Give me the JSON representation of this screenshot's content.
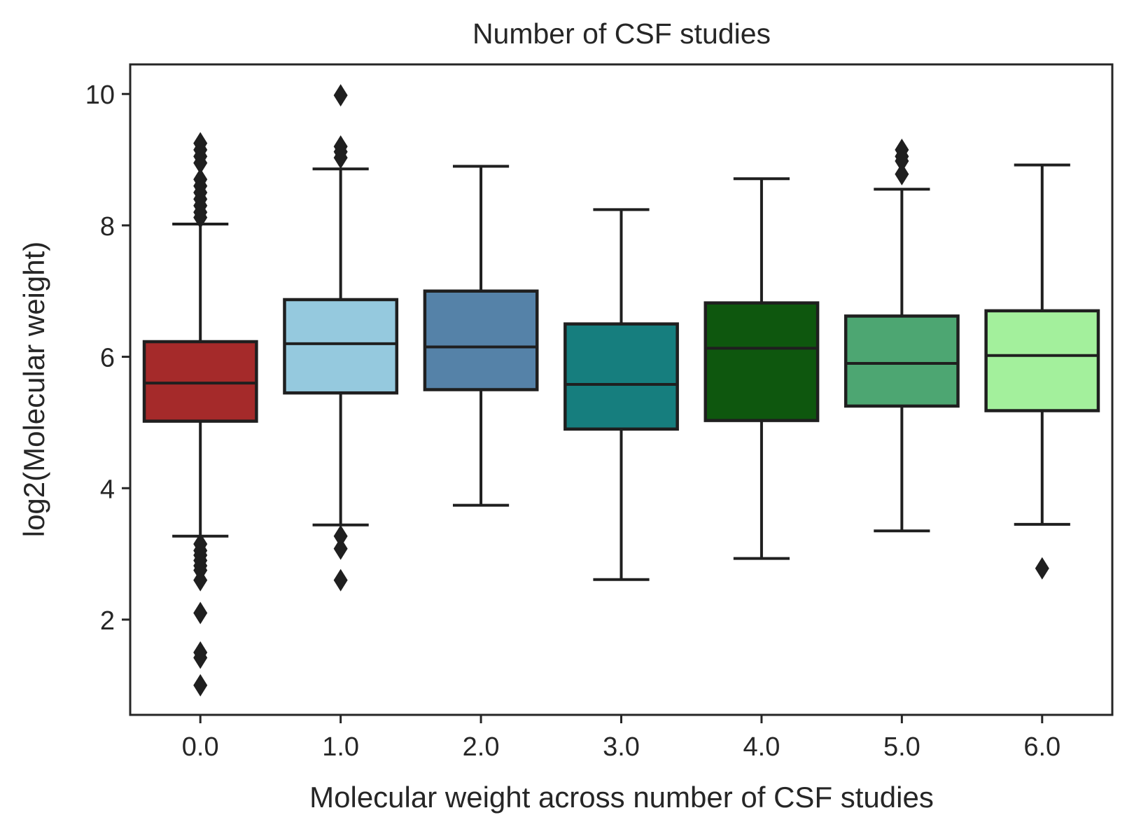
{
  "chart_data": {
    "type": "boxplot",
    "title": "Number of CSF studies",
    "xlabel": "Molecular weight across number of CSF studies",
    "ylabel": "log2(Molecular weight)",
    "ylim": [
      0.55,
      10.45
    ],
    "yticks": [
      2,
      4,
      6,
      8,
      10
    ],
    "grid": false,
    "categories": [
      "0.0",
      "1.0",
      "2.0",
      "3.0",
      "4.0",
      "5.0",
      "6.0"
    ],
    "boxes": [
      {
        "category": "0.0",
        "whislo": 3.27,
        "q1": 5.02,
        "median": 5.6,
        "q3": 6.23,
        "whishi": 8.02,
        "color": "#A52A2A",
        "fliers": [
          9.25,
          9.15,
          9.05,
          8.95,
          8.7,
          8.6,
          8.5,
          8.4,
          8.3,
          8.2,
          8.12,
          3.15,
          3.05,
          2.98,
          2.9,
          2.82,
          2.75,
          2.6,
          2.1,
          1.5,
          1.42,
          1.0
        ]
      },
      {
        "category": "1.0",
        "whislo": 3.44,
        "q1": 5.45,
        "median": 6.2,
        "q3": 6.87,
        "whishi": 8.86,
        "color": "#95C9DE",
        "fliers": [
          9.98,
          9.2,
          9.12,
          9.03,
          3.27,
          3.08,
          2.6
        ]
      },
      {
        "category": "2.0",
        "whislo": 3.74,
        "q1": 5.5,
        "median": 6.15,
        "q3": 7.0,
        "whishi": 8.9,
        "color": "#5582A8",
        "fliers": []
      },
      {
        "category": "3.0",
        "whislo": 2.61,
        "q1": 4.9,
        "median": 5.58,
        "q3": 6.5,
        "whishi": 8.24,
        "color": "#167E7E",
        "fliers": []
      },
      {
        "category": "4.0",
        "whislo": 2.93,
        "q1": 5.03,
        "median": 6.13,
        "q3": 6.82,
        "whishi": 8.71,
        "color": "#0E570E",
        "fliers": []
      },
      {
        "category": "5.0",
        "whislo": 3.35,
        "q1": 5.25,
        "median": 5.9,
        "q3": 6.62,
        "whishi": 8.55,
        "color": "#4DA672",
        "fliers": [
          9.15,
          9.05,
          8.98,
          8.78
        ]
      },
      {
        "category": "6.0",
        "whislo": 3.45,
        "q1": 5.18,
        "median": 6.02,
        "q3": 6.7,
        "whishi": 8.92,
        "color": "#A3F09C",
        "fliers": [
          2.78
        ]
      }
    ]
  }
}
